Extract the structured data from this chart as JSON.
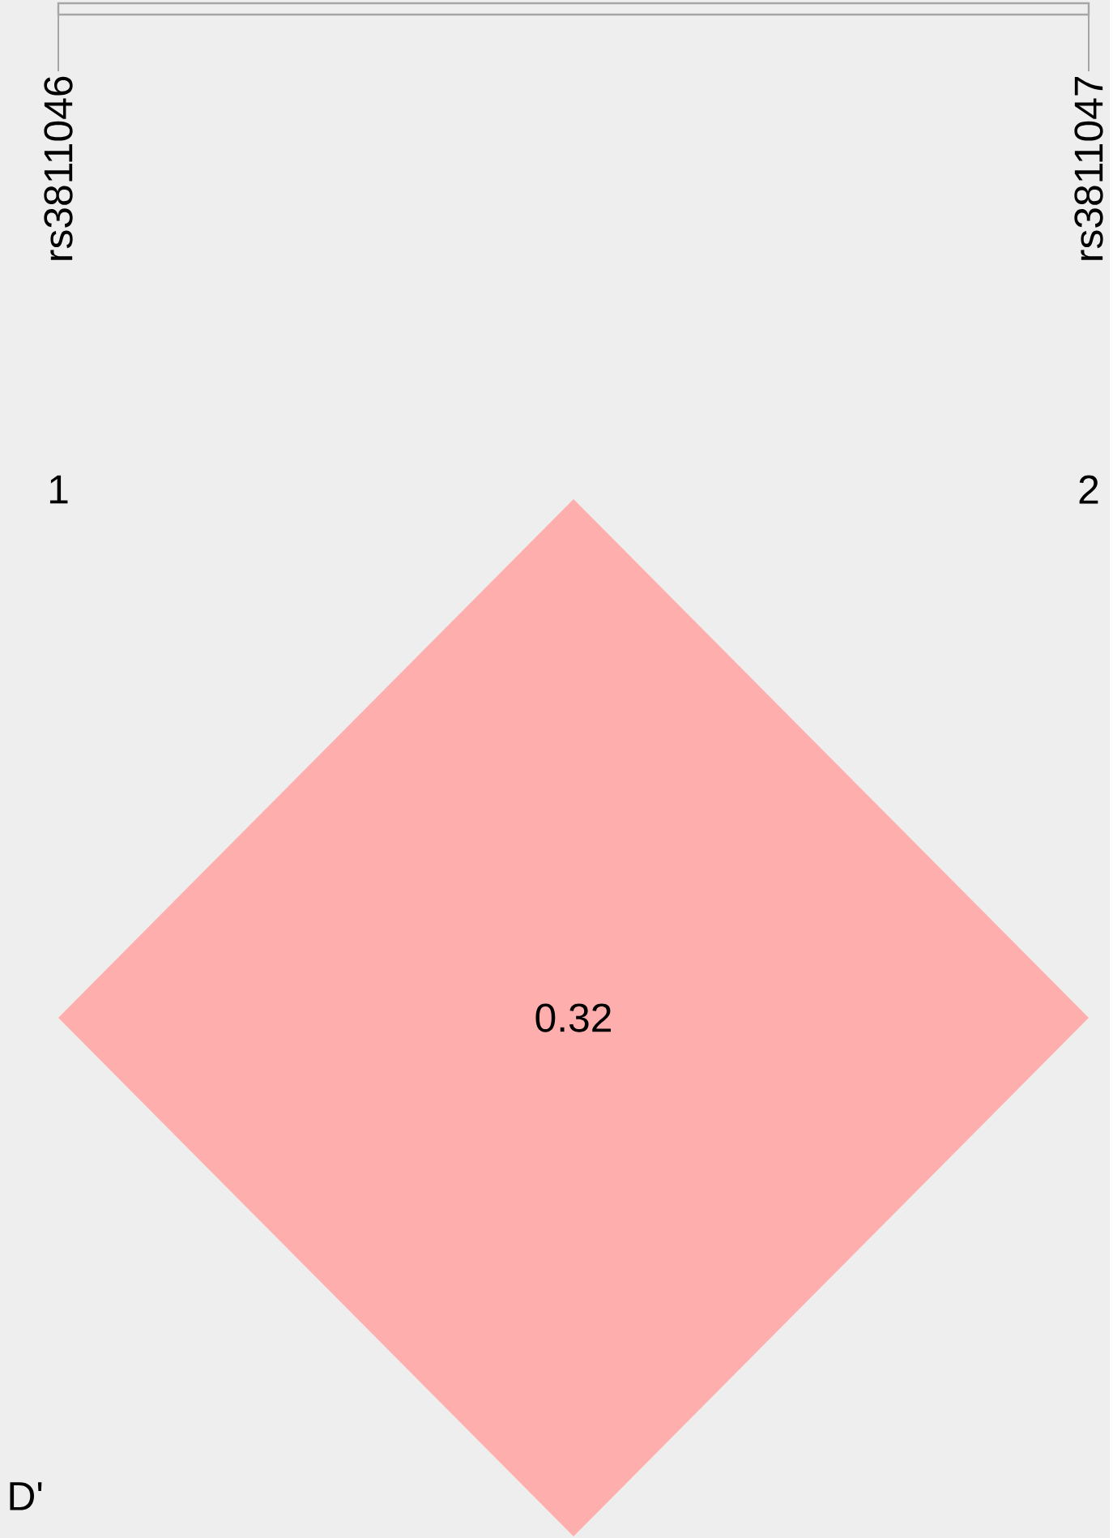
{
  "chart_data": {
    "type": "other",
    "values": [
      0.32
    ],
    "colors": [
      "#ffaeae"
    ],
    "data_labels": true,
    "annotations": [
      "rs3811046",
      "rs3811047",
      "1",
      "2",
      "D'"
    ]
  }
}
